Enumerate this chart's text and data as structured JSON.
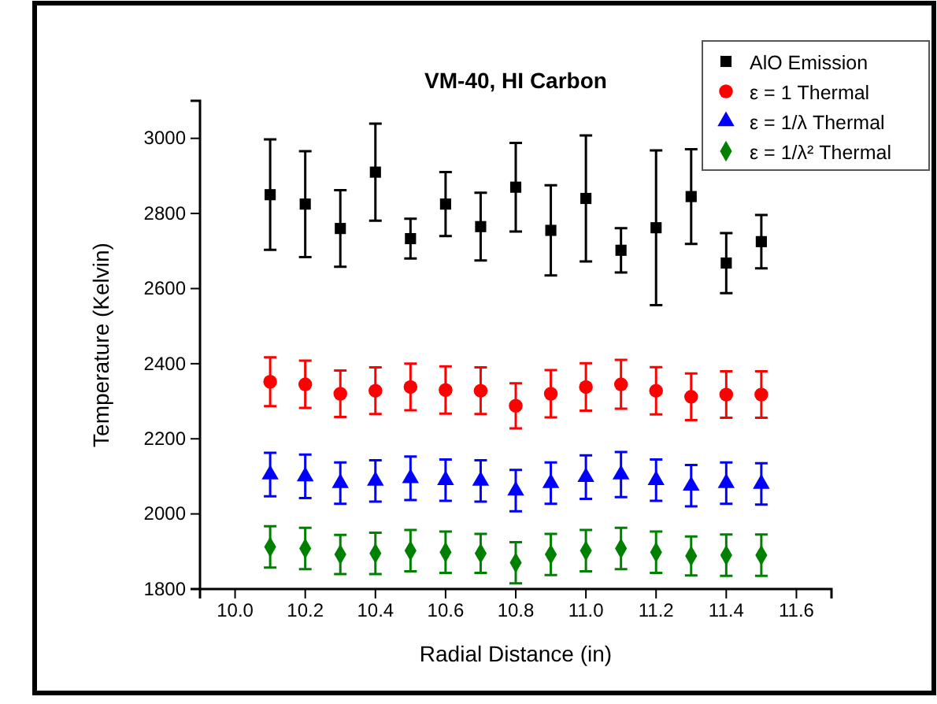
{
  "chart_data": {
    "type": "scatter",
    "title": "VM-40, HI Carbon",
    "xlabel": "Radial Distance (in)",
    "ylabel": "Temperature (Kelvin)",
    "x": [
      10.1,
      10.2,
      10.3,
      10.4,
      10.5,
      10.6,
      10.7,
      10.8,
      10.9,
      11.0,
      11.1,
      11.2,
      11.3,
      11.4,
      11.5
    ],
    "xlim": [
      9.9,
      11.7
    ],
    "xticks": [
      {
        "value": 10.0,
        "label": "10.0"
      },
      {
        "value": 10.2,
        "label": "10.2"
      },
      {
        "value": 10.4,
        "label": "10.4"
      },
      {
        "value": 10.6,
        "label": "10.6"
      },
      {
        "value": 10.8,
        "label": "10.8"
      },
      {
        "value": 11.0,
        "label": "11.0"
      },
      {
        "value": 11.2,
        "label": "11.2"
      },
      {
        "value": 11.4,
        "label": "11.4"
      },
      {
        "value": 11.6,
        "label": "11.6"
      }
    ],
    "ylim": [
      1800,
      3100
    ],
    "yticks": [
      1800,
      2000,
      2200,
      2400,
      2600,
      2800,
      3000
    ],
    "legend": "top right",
    "grid": false,
    "series": [
      {
        "name": "AlO Emission",
        "color": "#000000",
        "marker": "square",
        "values": [
          2850,
          2825,
          2760,
          2910,
          2733,
          2825,
          2765,
          2870,
          2755,
          2840,
          2702,
          2762,
          2845,
          2668,
          2725
        ],
        "errors": [
          147,
          141,
          102,
          129,
          53,
          85,
          90,
          118,
          120,
          168,
          59,
          206,
          126,
          80,
          71
        ]
      },
      {
        "name": "ε = 1 Thermal",
        "color": "#ff0000",
        "marker": "circle",
        "values": [
          2352,
          2345,
          2320,
          2328,
          2338,
          2330,
          2328,
          2288,
          2320,
          2338,
          2345,
          2328,
          2312,
          2318,
          2318
        ],
        "errors": [
          65,
          63,
          62,
          62,
          62,
          63,
          62,
          60,
          63,
          63,
          65,
          63,
          62,
          62,
          62
        ]
      },
      {
        "name": "ε = 1/λ Thermal",
        "color": "#0000ff",
        "marker": "triangle",
        "values": [
          2105,
          2100,
          2082,
          2088,
          2095,
          2090,
          2088,
          2062,
          2082,
          2098,
          2105,
          2090,
          2075,
          2082,
          2080
        ],
        "errors": [
          58,
          58,
          55,
          55,
          58,
          55,
          55,
          55,
          55,
          58,
          60,
          55,
          55,
          55,
          55
        ]
      },
      {
        "name": "ε = 1/λ² Thermal",
        "color": "#008000",
        "marker": "diamond",
        "values": [
          1912,
          1908,
          1892,
          1895,
          1902,
          1898,
          1895,
          1870,
          1892,
          1902,
          1908,
          1898,
          1888,
          1890,
          1890
        ],
        "errors": [
          55,
          55,
          52,
          55,
          55,
          55,
          52,
          55,
          55,
          55,
          55,
          55,
          52,
          55,
          55
        ]
      }
    ]
  }
}
